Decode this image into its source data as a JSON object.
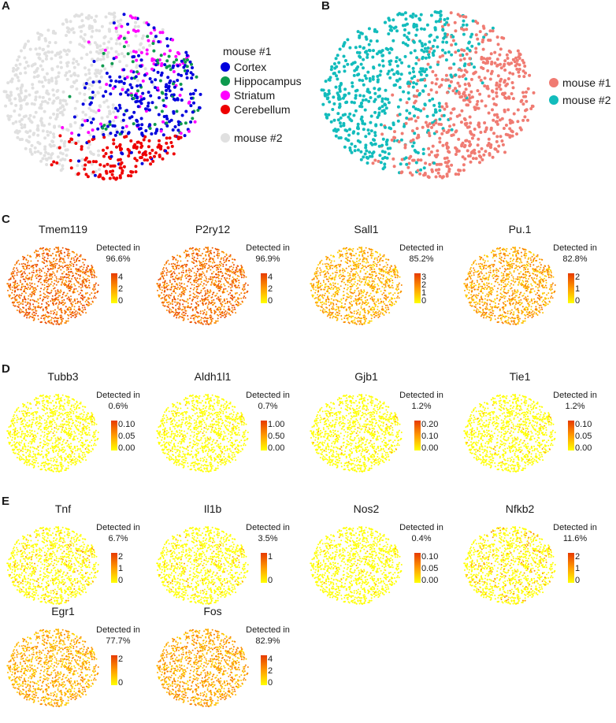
{
  "panels": {
    "A": {
      "letter": "A"
    },
    "B": {
      "letter": "B"
    },
    "C": {
      "letter": "C"
    },
    "D": {
      "letter": "D"
    },
    "E": {
      "letter": "E"
    }
  },
  "legendA": {
    "header": "mouse #1",
    "items": [
      {
        "label": "Cortex",
        "color": "#0000dd"
      },
      {
        "label": "Hippocampus",
        "color": "#0e9a4e"
      },
      {
        "label": "Striatum",
        "color": "#ff00ff"
      },
      {
        "label": "Cerebellum",
        "color": "#ee0000"
      }
    ],
    "other": {
      "label": "mouse #2",
      "color": "#e0e0e0"
    }
  },
  "legendB": {
    "items": [
      {
        "label": "mouse #1",
        "color": "#f07b72"
      },
      {
        "label": "mouse #2",
        "color": "#12bcbc"
      }
    ]
  },
  "detected_label": "Detected in",
  "colorscale": {
    "low": "#ffff00",
    "mid": "#ff9b00",
    "high": "#e63a00"
  },
  "chart_data": [
    {
      "type": "scatter",
      "title": "A",
      "description": "t-SNE of microglia colored by brain region (mouse #1) vs mouse #2",
      "legend": [
        "Cortex",
        "Hippocampus",
        "Striatum",
        "Cerebellum",
        "mouse #2"
      ],
      "legend_position": "right"
    },
    {
      "type": "scatter",
      "title": "B",
      "description": "t-SNE of microglia colored by mouse",
      "legend": [
        "mouse #1",
        "mouse #2"
      ],
      "legend_position": "right"
    },
    {
      "type": "scatter",
      "section": "C",
      "genes": [
        {
          "name": "Tmem119",
          "detected": "96.6%",
          "ticks": [
            "4",
            "2",
            "0"
          ],
          "max": 4.8,
          "level": 0.75
        },
        {
          "name": "P2ry12",
          "detected": "96.9%",
          "ticks": [
            "4",
            "2",
            "0"
          ],
          "max": 4.8,
          "level": 0.72
        },
        {
          "name": "Sall1",
          "detected": "85.2%",
          "ticks": [
            "3",
            "2",
            "1",
            "0"
          ],
          "max": 3,
          "level": 0.4
        },
        {
          "name": "Pu.1",
          "detected": "82.8%",
          "ticks": [
            "2",
            "1",
            "0"
          ],
          "max": 2.6,
          "level": 0.45
        }
      ]
    },
    {
      "type": "scatter",
      "section": "D",
      "genes": [
        {
          "name": "Tubb3",
          "detected": "0.6%",
          "ticks": [
            "0.10",
            "0.05",
            "0.00"
          ],
          "max": 0.12,
          "level": 0.02
        },
        {
          "name": "Aldh1l1",
          "detected": "0.7%",
          "ticks": [
            "1.00",
            "0.50",
            "0.00"
          ],
          "max": 1.0,
          "level": 0.02
        },
        {
          "name": "Gjb1",
          "detected": "1.2%",
          "ticks": [
            "0.20",
            "0.10",
            "0.00"
          ],
          "max": 0.22,
          "level": 0.03
        },
        {
          "name": "Tie1",
          "detected": "1.2%",
          "ticks": [
            "0.10",
            "0.05",
            "0.00"
          ],
          "max": 0.12,
          "level": 0.03
        }
      ]
    },
    {
      "type": "scatter",
      "section": "E",
      "genes": [
        {
          "name": "Tnf",
          "detected": "6.7%",
          "ticks": [
            "2",
            "1",
            "0"
          ],
          "max": 2.2,
          "level": 0.08
        },
        {
          "name": "Il1b",
          "detected": "3.5%",
          "ticks": [
            "1",
            "0"
          ],
          "max": 1.8,
          "level": 0.05
        },
        {
          "name": "Nos2",
          "detected": "0.4%",
          "ticks": [
            "0.10",
            "0.05",
            "0.00"
          ],
          "max": 0.12,
          "level": 0.02
        },
        {
          "name": "Nfkb2",
          "detected": "11.6%",
          "ticks": [
            "2",
            "1",
            "0"
          ],
          "max": 2.6,
          "level": 0.12
        },
        {
          "name": "Egr1",
          "detected": "77.7%",
          "ticks": [
            "2",
            "0"
          ],
          "max": 3.6,
          "level": 0.4
        },
        {
          "name": "Fos",
          "detected": "82.9%",
          "ticks": [
            "4",
            "2",
            "0"
          ],
          "max": 4.4,
          "level": 0.45
        }
      ]
    }
  ]
}
